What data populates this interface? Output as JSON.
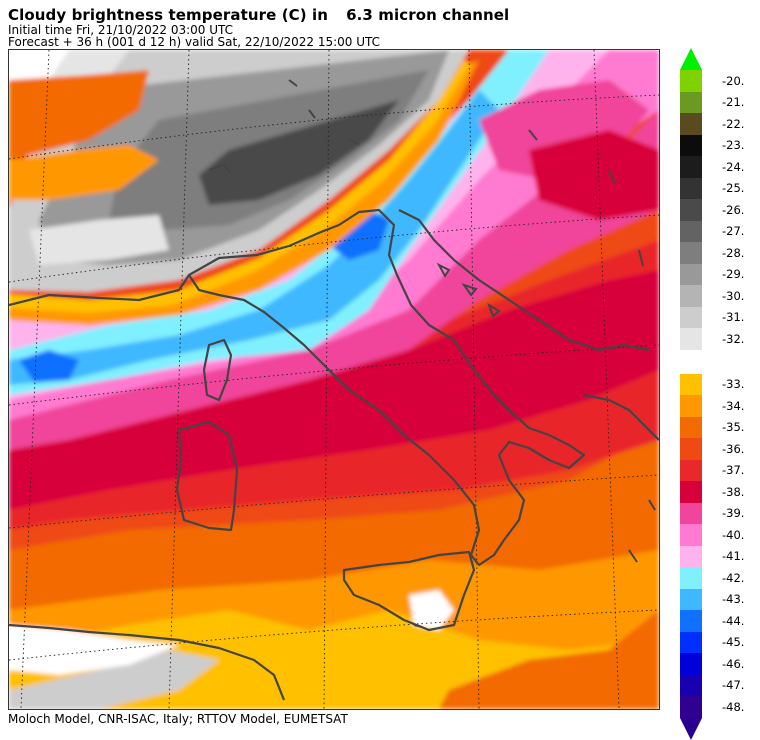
{
  "header": {
    "title_prefix": "Cloudy brightness temperature (C) in",
    "title_channel": "6.3 micron channel",
    "initial_time": "Initial time  Fri, 21/10/2022  03:00 UTC",
    "forecast": "Forecast  +  36 h  (001 d 12 h)  valid Sat, 22/10/2022 15:00 UTC"
  },
  "footer": {
    "credits": "Moloch Model, CNR-ISAC, Italy; RTTOV Model, EUMETSAT"
  },
  "legend": {
    "top_arrow_color": "#00ee00",
    "bottom_arrow_color": "#2a0090",
    "cloudy_group": [
      {
        "label": "-20.",
        "color": "#7fd100"
      },
      {
        "label": "-21.",
        "color": "#6b9a20"
      },
      {
        "label": "-22.",
        "color": "#5a4a20"
      },
      {
        "label": "-23.",
        "color": "#0c0c0c"
      },
      {
        "label": "-24.",
        "color": "#1c1c1c"
      },
      {
        "label": "-25.",
        "color": "#333333"
      },
      {
        "label": "-26.",
        "color": "#4a4a4a"
      },
      {
        "label": "-27.",
        "color": "#636363"
      },
      {
        "label": "-28.",
        "color": "#7e7e7e"
      },
      {
        "label": "-29.",
        "color": "#999999"
      },
      {
        "label": "-30.",
        "color": "#b4b4b4"
      },
      {
        "label": "-31.",
        "color": "#cdcdcd"
      },
      {
        "label": "-32.",
        "color": "#e5e5e5"
      }
    ],
    "moist_group": [
      {
        "label": "-33.",
        "color": "#ffc000"
      },
      {
        "label": "-34.",
        "color": "#ff9800"
      },
      {
        "label": "-35.",
        "color": "#f26a00"
      },
      {
        "label": "-36.",
        "color": "#ef4a14"
      },
      {
        "label": "-37.",
        "color": "#e8282a"
      },
      {
        "label": "-38.",
        "color": "#d8003a"
      },
      {
        "label": "-39.",
        "color": "#f0459a"
      },
      {
        "label": "-40.",
        "color": "#ff7ad0"
      },
      {
        "label": "-41.",
        "color": "#ffb3ec"
      },
      {
        "label": "-42.",
        "color": "#80f0ff"
      },
      {
        "label": "-43.",
        "color": "#40b8ff"
      },
      {
        "label": "-44.",
        "color": "#1070ff"
      },
      {
        "label": "-45.",
        "color": "#0030ff"
      },
      {
        "label": "-46.",
        "color": "#0000d8"
      },
      {
        "label": "-47.",
        "color": "#1800b0"
      },
      {
        "label": "-48.",
        "color": "#300090"
      }
    ]
  }
}
